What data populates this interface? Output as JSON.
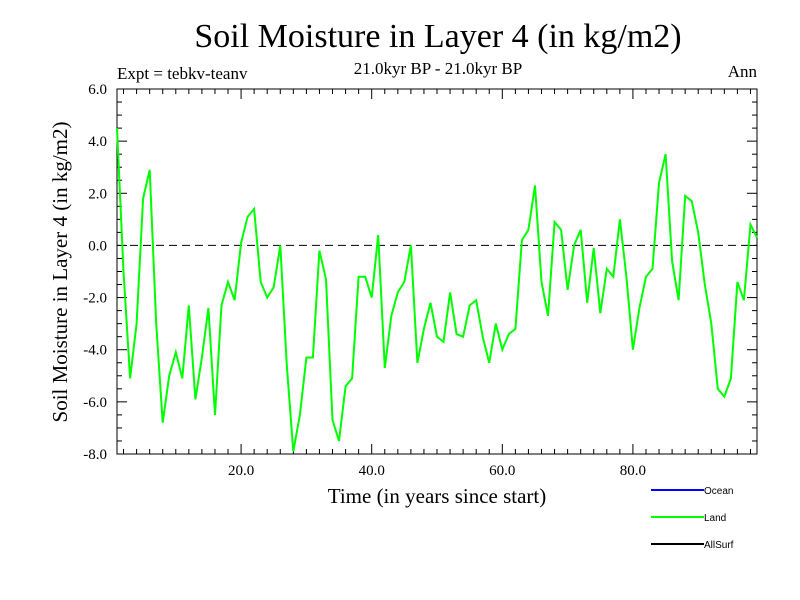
{
  "chart_data": {
    "type": "line",
    "title": "Soil Moisture in Layer 4 (in kg/m2)",
    "subtitle": "21.0kyr BP - 21.0kyr BP",
    "experiment": "Expt = tebkv-teanv",
    "season": "Ann",
    "xlabel": "Time (in years since start)",
    "ylabel": "Soil Moisture in Layer 4 (in kg/m2)",
    "xlim": [
      1,
      99
    ],
    "ylim": [
      -8.0,
      6.0
    ],
    "x_ticks": [
      20,
      40,
      60,
      80
    ],
    "x_tick_labels": [
      "20.0",
      "40.0",
      "60.0",
      "80.0"
    ],
    "y_ticks": [
      -8,
      -6,
      -4,
      -2,
      0,
      2,
      4,
      6
    ],
    "y_tick_labels": [
      "-8.0",
      "-6.0",
      "-4.0",
      "-2.0",
      "0.0",
      "2.0",
      "4.0",
      "6.0"
    ],
    "reference_line": 0.0,
    "series": [
      {
        "name": "Ocean",
        "color": "#0000ff",
        "x": [],
        "values": []
      },
      {
        "name": "Land",
        "color": "#00ff00",
        "x": [
          1,
          2,
          3,
          4,
          5,
          6,
          7,
          8,
          9,
          10,
          11,
          12,
          13,
          14,
          15,
          16,
          17,
          18,
          19,
          20,
          21,
          22,
          23,
          24,
          25,
          26,
          27,
          28,
          29,
          30,
          31,
          32,
          33,
          34,
          35,
          36,
          37,
          38,
          39,
          40,
          41,
          42,
          43,
          44,
          45,
          46,
          47,
          48,
          49,
          50,
          51,
          52,
          53,
          54,
          55,
          56,
          57,
          58,
          59,
          60,
          61,
          62,
          63,
          64,
          65,
          66,
          67,
          68,
          69,
          70,
          71,
          72,
          73,
          74,
          75,
          76,
          77,
          78,
          79,
          80,
          81,
          82,
          83,
          84,
          85,
          86,
          87,
          88,
          89,
          90,
          91,
          92,
          93,
          94,
          95,
          96,
          97,
          98,
          99
        ],
        "values": [
          4.5,
          -1.0,
          -5.1,
          -3.0,
          1.8,
          2.9,
          -3.0,
          -6.8,
          -5.0,
          -4.1,
          -5.1,
          -2.3,
          -5.9,
          -4.3,
          -2.4,
          -6.5,
          -2.3,
          -1.4,
          -2.1,
          0.1,
          1.1,
          1.4,
          -1.4,
          -2.0,
          -1.6,
          0.0,
          -4.6,
          -7.9,
          -6.5,
          -4.3,
          -4.3,
          -0.2,
          -1.3,
          -6.7,
          -7.5,
          -5.4,
          -5.1,
          -1.2,
          -1.2,
          -2.0,
          0.4,
          -4.7,
          -2.7,
          -1.8,
          -1.4,
          0.0,
          -4.5,
          -3.2,
          -2.2,
          -3.5,
          -3.7,
          -1.8,
          -3.4,
          -3.5,
          -2.3,
          -2.1,
          -3.5,
          -4.5,
          -3.0,
          -4.0,
          -3.4,
          -3.2,
          0.2,
          0.6,
          2.3,
          -1.4,
          -2.7,
          0.9,
          0.6,
          -1.7,
          0.0,
          0.6,
          -2.2,
          -0.1,
          -2.6,
          -0.9,
          -1.2,
          1.0,
          -1.2,
          -4.0,
          -2.4,
          -1.2,
          -0.9,
          2.4,
          3.5,
          -0.6,
          -2.1,
          1.9,
          1.7,
          0.5,
          -1.5,
          -3.0,
          -5.5,
          -5.8,
          -5.1,
          -1.4,
          -2.1,
          0.8,
          0.3
        ]
      },
      {
        "name": "AllSurf",
        "color": "#000000",
        "x": [],
        "values": []
      }
    ],
    "legend_position": "bottom-right"
  }
}
